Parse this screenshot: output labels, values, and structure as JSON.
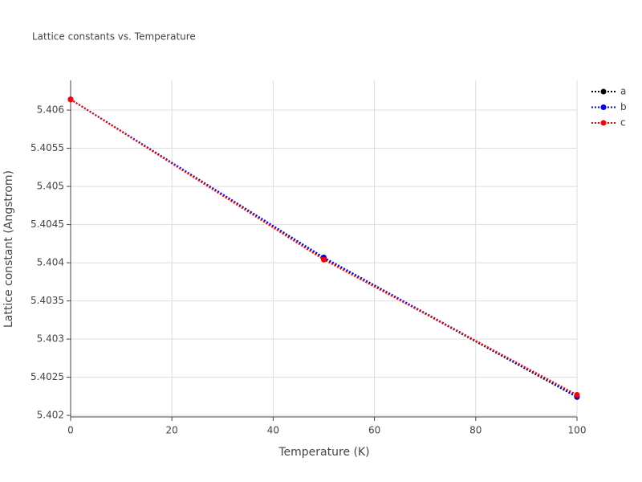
{
  "chart_data": {
    "type": "line",
    "title": "Lattice constants vs. Temperature",
    "x_label": "Temperature (K)",
    "y_label": "Lattice constant (Angstrom)",
    "x": [
      0,
      50,
      100
    ],
    "series": [
      {
        "name": "a",
        "color": "#000000",
        "values": [
          5.40614,
          5.40406,
          5.40224
        ]
      },
      {
        "name": "b",
        "color": "#0000ff",
        "values": [
          5.40614,
          5.40407,
          5.40225
        ]
      },
      {
        "name": "c",
        "color": "#ff0000",
        "values": [
          5.40614,
          5.40404,
          5.40227
        ]
      }
    ],
    "xlim": [
      0,
      100
    ],
    "xticks": [
      0,
      20,
      40,
      60,
      80,
      100
    ],
    "ylim": [
      5.40198,
      5.40639
    ],
    "yticks": [
      5.402,
      5.4025,
      5.403,
      5.4035,
      5.404,
      5.4045,
      5.405,
      5.4055,
      5.406
    ],
    "grid": true,
    "line_style": "dot",
    "legend": "top-right"
  }
}
